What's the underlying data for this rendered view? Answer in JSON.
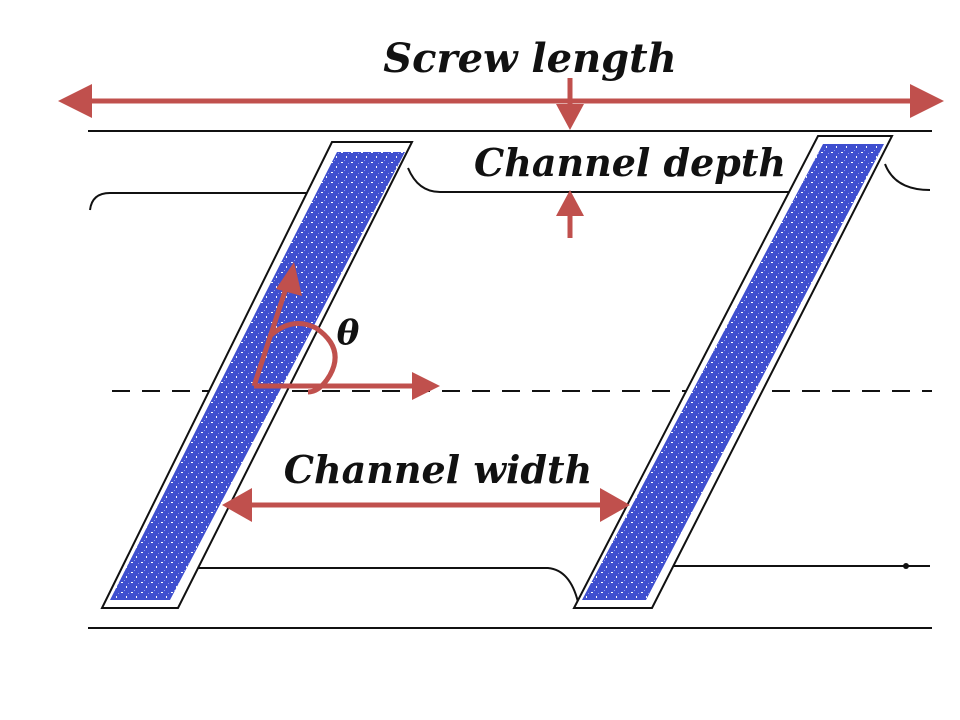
{
  "labels": {
    "screw_length": "Screw length",
    "channel_depth": "Channel depth",
    "channel_width": "Channel width",
    "angle": "θ"
  },
  "colors": {
    "arrow": "#c0504d",
    "flight_fill": "#3f4fcf",
    "line": "#111111",
    "text": "#111111"
  }
}
